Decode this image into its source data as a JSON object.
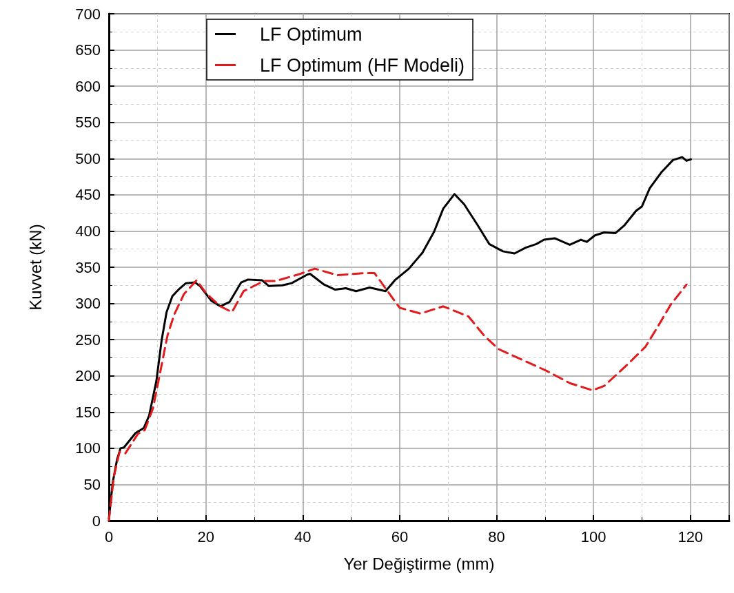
{
  "chart_data": {
    "type": "line",
    "xlabel": "Yer Değiştirme (mm)",
    "ylabel": "Kuvvet (kN)",
    "xlim": [
      0,
      128
    ],
    "xticks": [
      0,
      20,
      40,
      60,
      80,
      100,
      120
    ],
    "ylim": [
      0,
      700
    ],
    "yticks": [
      0,
      50,
      100,
      150,
      200,
      250,
      300,
      350,
      400,
      450,
      500,
      550,
      600,
      650,
      700
    ],
    "grid": true,
    "legend": "top left",
    "marker": "none",
    "series": [
      {
        "name": "LF Optimum",
        "color": "#000000",
        "line_style": "solid",
        "x": [
          0,
          0.8,
          1.7,
          2.4,
          3.1,
          5.5,
          7.2,
          8.3,
          9.8,
          10.9,
          11.9,
          13.1,
          14.5,
          15.9,
          17.8,
          18.8,
          21.1,
          23.0,
          24.9,
          27.3,
          28.7,
          31.6,
          33.0,
          35.8,
          37.7,
          41.0,
          41.5,
          44.4,
          46.7,
          48.9,
          51.0,
          53.8,
          57.1,
          59.0,
          61.9,
          64.7,
          67.1,
          69.0,
          71.3,
          73.3,
          76.1,
          78.5,
          81.3,
          83.7,
          86.0,
          88.2,
          89.8,
          92.0,
          95.1,
          97.4,
          98.6,
          100.3,
          102.2,
          104.5,
          106.4,
          108.8,
          110.0,
          111.6,
          114.0,
          116.4,
          118.3,
          119.2,
          120.1
        ],
        "values": [
          3,
          53,
          85,
          100,
          101,
          121,
          128,
          145,
          193,
          250,
          288,
          310,
          320,
          328,
          329,
          324,
          304,
          296,
          302,
          329,
          333,
          332,
          324,
          325,
          328,
          340,
          341,
          326,
          319,
          321,
          317,
          322,
          317,
          332,
          348,
          370,
          399,
          431,
          451,
          437,
          408,
          382,
          372,
          369,
          377,
          382,
          388,
          390,
          381,
          388,
          385,
          394,
          398,
          397,
          408,
          428,
          434,
          459,
          481,
          498,
          502,
          497,
          499
        ]
      },
      {
        "name": "LF Optimum (HF Modeli)",
        "color": "#e31a1c",
        "line_style": "dashed",
        "x": [
          0,
          1.0,
          2.2,
          3.4,
          6.0,
          7.4,
          9.1,
          10.5,
          12.1,
          13.5,
          15.5,
          18.1,
          20.2,
          23.0,
          25.4,
          27.8,
          32.0,
          34.4,
          39.1,
          42.5,
          47.2,
          52.9,
          54.8,
          60.0,
          64.3,
          69.0,
          74.2,
          77.5,
          80.4,
          86.0,
          90.3,
          95.1,
          99.8,
          102.2,
          106.9,
          110.7,
          113.1,
          115.9,
          119.2
        ],
        "values": [
          0,
          60,
          95,
          93,
          120,
          125,
          155,
          202,
          256,
          285,
          313,
          332,
          313,
          296,
          288,
          317,
          331,
          331,
          340,
          348,
          339,
          342,
          342,
          294,
          286,
          296,
          282,
          255,
          237,
          220,
          207,
          190,
          180,
          186,
          215,
          240,
          266,
          298,
          326
        ]
      }
    ]
  }
}
